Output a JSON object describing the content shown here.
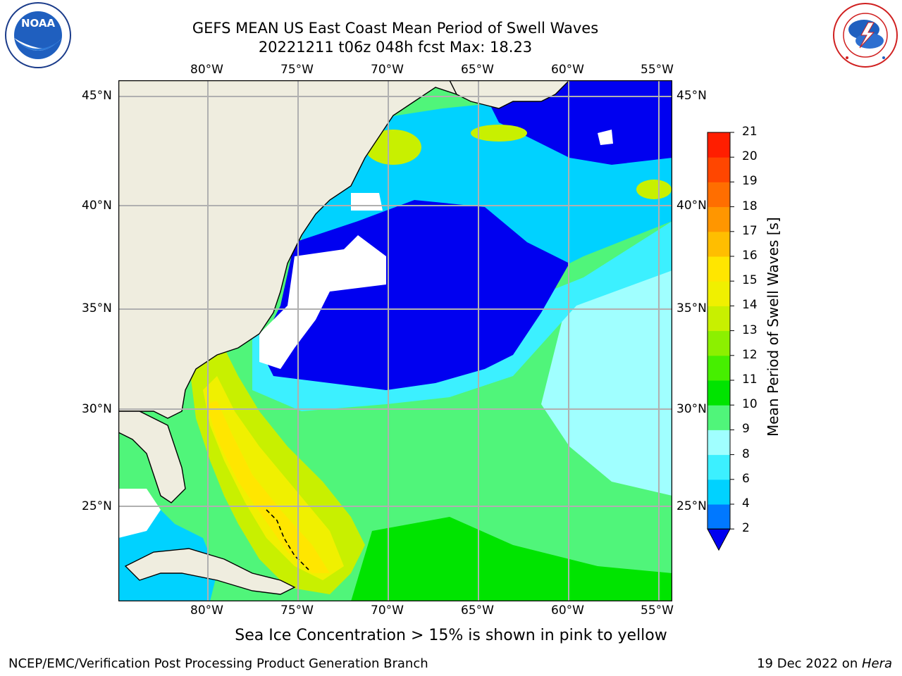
{
  "header": {
    "title_line1": "GEFS MEAN US East Coast Mean Period of Swell Waves",
    "title_line2": "20221211 t06z 048h fcst   Max: 18.23"
  },
  "map": {
    "lon_labels": [
      "80°W",
      "75°W",
      "70°W",
      "65°W",
      "60°W",
      "55°W"
    ],
    "lat_labels": [
      "45°N",
      "40°N",
      "35°N",
      "30°N",
      "25°N"
    ],
    "colors": {
      "land": "#efeddf",
      "gridline": "#b0b0b0",
      "coastline": "#000000",
      "no_data": "#ffffff"
    }
  },
  "colorbar": {
    "label": "Mean Period of Swell Waves [s]",
    "ticks": [
      "2",
      "4",
      "6",
      "8",
      "9",
      "10",
      "11",
      "12",
      "13",
      "14",
      "15",
      "16",
      "17",
      "18",
      "19",
      "20",
      "21"
    ],
    "colors": [
      "#0078ff",
      "#00d2ff",
      "#3cf0ff",
      "#a0ffff",
      "#50f57a",
      "#00e400",
      "#46ef00",
      "#8cf000",
      "#c8f000",
      "#f0f000",
      "#ffe600",
      "#ffbe00",
      "#ff9600",
      "#ff6e00",
      "#ff4600",
      "#ff1e00"
    ],
    "under_color": "#0000f0"
  },
  "footnote": "Sea Ice Concentration > 15% is shown in pink to yellow",
  "footer": {
    "left": "NCEP/EMC/Verification Post Processing Product Generation Branch",
    "date": "19 Dec 2022 on ",
    "machine": "Hera"
  },
  "logos": {
    "noaa_text": "NOAA",
    "nws_text": "NATIONAL WEATHER SERVICE"
  }
}
